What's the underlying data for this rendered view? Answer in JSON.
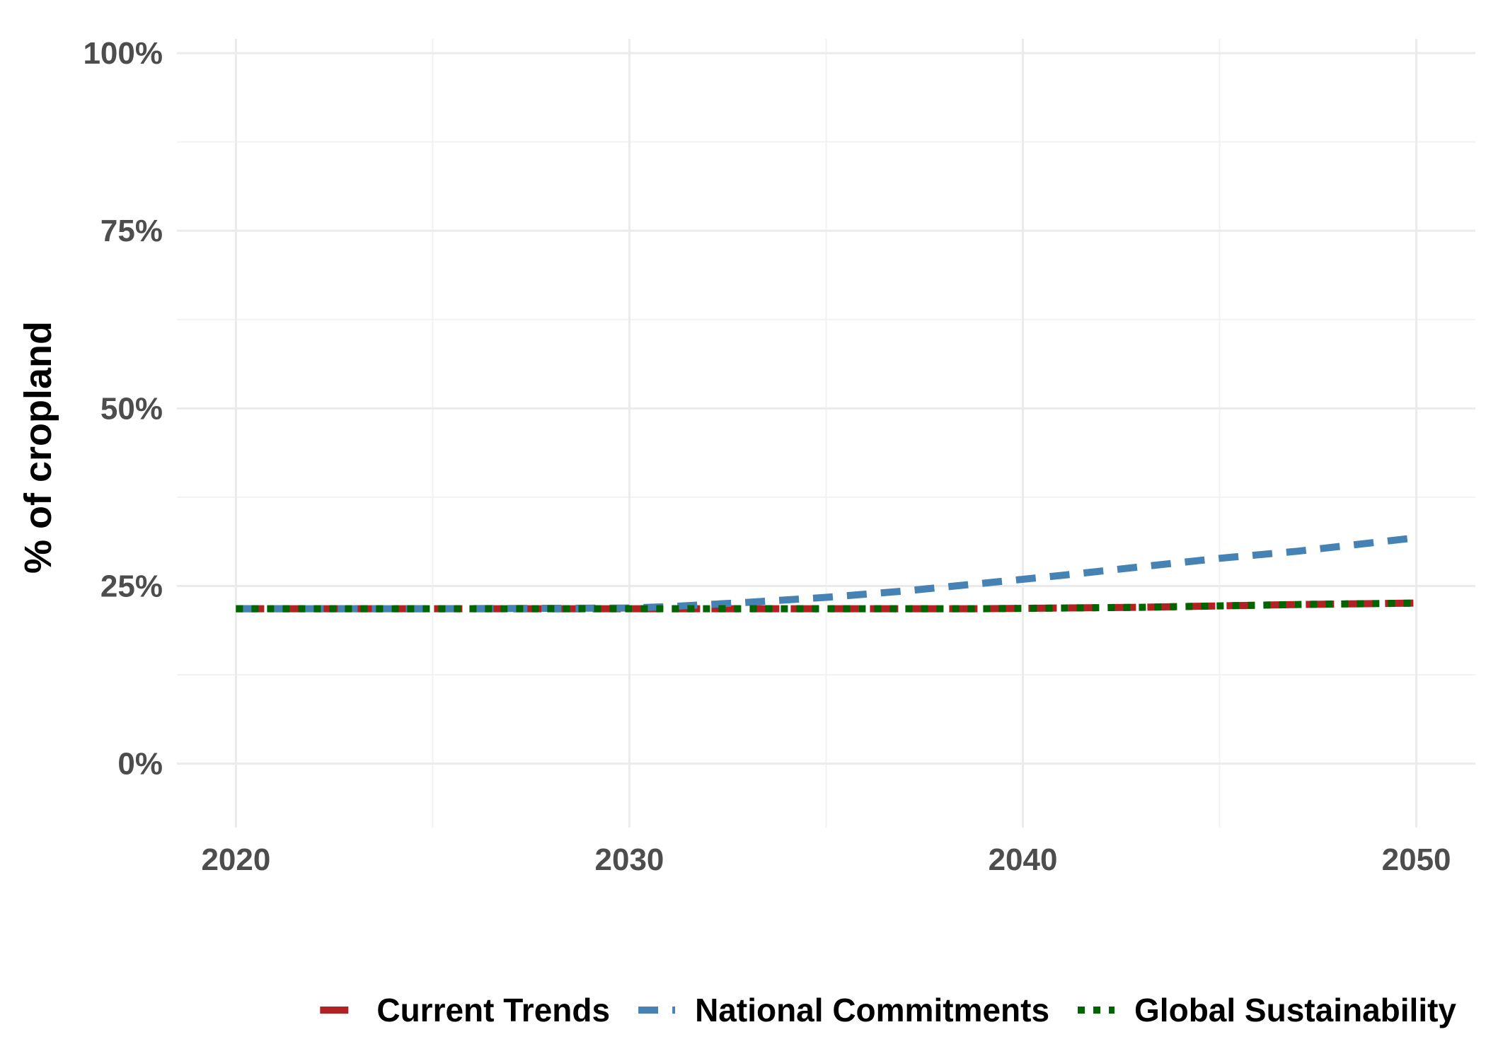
{
  "chart_data": {
    "type": "line",
    "title": "",
    "xlabel": "",
    "ylabel": "% of cropland",
    "xlim": [
      2018.5,
      2051.5
    ],
    "ylim": [
      -0.09,
      1.02
    ],
    "x_ticks": [
      2020,
      2030,
      2040,
      2050
    ],
    "x_tick_labels": [
      "2020",
      "2030",
      "2040",
      "2050"
    ],
    "y_ticks": [
      0,
      0.25,
      0.5,
      0.75,
      1.0
    ],
    "y_tick_labels": [
      "0%",
      "25%",
      "50%",
      "75%",
      "100%"
    ],
    "grid": true,
    "legend_position": "bottom",
    "x": [
      2020,
      2025,
      2030,
      2031,
      2033,
      2035,
      2037,
      2039,
      2041,
      2043,
      2045,
      2047,
      2050
    ],
    "series": [
      {
        "name": "Current Trends",
        "color": "#b22222",
        "dash": "long",
        "values": [
          0.218,
          0.218,
          0.218,
          0.218,
          0.218,
          0.218,
          0.218,
          0.218,
          0.219,
          0.22,
          0.222,
          0.224,
          0.226
        ]
      },
      {
        "name": "National Commitments",
        "color": "#4682b4",
        "dash": "dashed",
        "values": [
          0.218,
          0.218,
          0.219,
          0.221,
          0.227,
          0.234,
          0.243,
          0.254,
          0.265,
          0.277,
          0.289,
          0.299,
          0.318
        ]
      },
      {
        "name": "Global Sustainability",
        "color": "#006400",
        "dash": "dotted",
        "values": [
          0.218,
          0.218,
          0.218,
          0.218,
          0.218,
          0.218,
          0.218,
          0.218,
          0.219,
          0.22,
          0.222,
          0.224,
          0.226
        ]
      }
    ]
  }
}
